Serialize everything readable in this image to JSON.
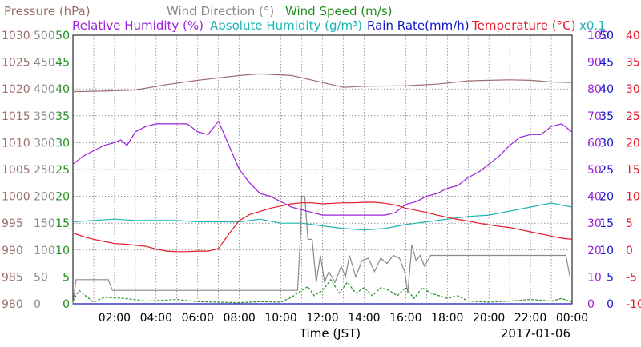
{
  "chart_data": {
    "type": "line",
    "xlabel": "Time (JST)",
    "date_label": "2017-01-06",
    "x_ticks": [
      "02:00",
      "04:00",
      "06:00",
      "08:00",
      "10:00",
      "12:00",
      "14:00",
      "16:00",
      "18:00",
      "20:00",
      "22:00",
      "00:00"
    ],
    "xlim_hours": [
      0,
      24
    ],
    "grid": true,
    "legend": [
      {
        "label": "Pressure (hPa)",
        "color": "#9c6d6d"
      },
      {
        "label": "Wind Direction (°)",
        "color": "#8a8a8a"
      },
      {
        "label": "Wind Speed (m/s)",
        "color": "#1f8f1f"
      },
      {
        "label": "Relative Humidity (%)",
        "color": "#9a22d8"
      },
      {
        "label": "Absolute Humidity (g/m³)",
        "color": "#1fb3b3"
      },
      {
        "label": "Rain Rate(mm/h)",
        "color": "#1414c8"
      },
      {
        "label": "Temperature (°C)",
        "color": "#e8182a"
      },
      {
        "label": "x0.1",
        "color": "#1fb3b3"
      }
    ],
    "axes": [
      {
        "name": "pressure",
        "color": "#9c6d6d",
        "ylim": [
          980,
          1030
        ],
        "ticks": [
          "1030",
          "1025",
          "1020",
          "1015",
          "1010",
          "1005",
          "1000",
          "995",
          "990",
          "985",
          "980"
        ]
      },
      {
        "name": "wind_direction",
        "color": "#8a8a8a",
        "ylim": [
          0,
          500
        ],
        "ticks": [
          "500",
          "450",
          "400",
          "350",
          "300",
          "250",
          "200",
          "150",
          "100",
          "50",
          "0"
        ]
      },
      {
        "name": "wind_speed",
        "color": "#1f8f1f",
        "ylim": [
          0,
          50
        ],
        "ticks": [
          "50",
          "45",
          "40",
          "35",
          "30",
          "25",
          "20",
          "15",
          "10",
          "5",
          "0"
        ]
      },
      {
        "name": "relative_humidity",
        "color": "#9a22d8",
        "ylim": [
          0,
          100
        ],
        "ticks": [
          "100",
          "90",
          "80",
          "70",
          "60",
          "50",
          "40",
          "30",
          "20",
          "10",
          "0"
        ]
      },
      {
        "name": "rain_rate",
        "color": "#1414c8",
        "ylim": [
          0,
          50
        ],
        "ticks": [
          "50",
          "45",
          "40",
          "35",
          "30",
          "25",
          "20",
          "15",
          "10",
          "5",
          "0"
        ]
      },
      {
        "name": "temperature",
        "color": "#e8182a",
        "ylim": [
          -10,
          40
        ],
        "ticks": [
          "40",
          "35",
          "30",
          "25",
          "20",
          "15",
          "10",
          "5",
          "0",
          "-5",
          "-10"
        ]
      }
    ],
    "series": [
      {
        "name": "Pressure (hPa)",
        "axis": "pressure",
        "color": "#9c6d6d",
        "x": [
          0,
          1.5,
          3,
          4.5,
          6,
          8,
          9,
          10.5,
          12,
          13,
          14,
          16,
          17.5,
          19,
          20,
          21,
          22,
          23,
          24
        ],
        "y": [
          1019.5,
          1019.6,
          1019.8,
          1020.8,
          1021.6,
          1022.5,
          1022.8,
          1022.5,
          1021.2,
          1020.3,
          1020.5,
          1020.6,
          1020.9,
          1021.5,
          1021.6,
          1021.7,
          1021.6,
          1021.3,
          1021.2
        ]
      },
      {
        "name": "Wind Direction (°)",
        "axis": "wind_direction",
        "color": "#8a8a8a",
        "x": [
          0,
          0.15,
          0.3,
          1.7,
          1.9,
          2.5,
          9.5,
          10.4,
          10.6,
          10.8,
          10.95,
          11.0,
          11.15,
          11.3,
          11.5,
          11.7,
          11.9,
          12.1,
          12.3,
          12.6,
          12.9,
          13.1,
          13.3,
          13.6,
          13.9,
          14.2,
          14.5,
          14.8,
          15.1,
          15.4,
          15.7,
          15.95,
          16.1,
          16.3,
          16.5,
          16.7,
          16.9,
          17.2,
          17.6,
          18,
          19,
          20,
          21,
          22,
          23,
          23.7,
          23.9
        ],
        "y": [
          0,
          45,
          45,
          45,
          25,
          25,
          25,
          25,
          25,
          25,
          130,
          200,
          200,
          120,
          120,
          40,
          90,
          40,
          60,
          40,
          70,
          50,
          90,
          50,
          80,
          85,
          60,
          85,
          75,
          90,
          85,
          60,
          20,
          110,
          80,
          90,
          70,
          90,
          90,
          90,
          90,
          90,
          90,
          90,
          90,
          90,
          50
        ]
      },
      {
        "name": "Wind Speed (m/s)",
        "axis": "wind_speed",
        "color": "#1f8f1f",
        "x": [
          0,
          0.3,
          0.6,
          1,
          1.5,
          2.5,
          3.5,
          5,
          6,
          7,
          8,
          9,
          10,
          10.5,
          11,
          11.3,
          11.6,
          12,
          12.4,
          12.8,
          13.2,
          13.6,
          14,
          14.4,
          14.8,
          15.2,
          15.6,
          16,
          16.4,
          16.8,
          17.2,
          17.6,
          18,
          18.5,
          19,
          20,
          21,
          22,
          23,
          23.5,
          24
        ],
        "y": [
          0.5,
          2.5,
          1.5,
          0.3,
          1.2,
          1,
          0.5,
          0.8,
          0.4,
          0.3,
          0.2,
          0.4,
          0.3,
          1.2,
          2.5,
          3.2,
          1.5,
          2.5,
          4.5,
          2,
          4,
          2,
          3,
          1.5,
          3,
          2.5,
          1.5,
          3,
          1,
          3,
          2,
          1.5,
          1,
          1.5,
          0.5,
          0.3,
          0.5,
          0.8,
          0.5,
          1,
          0.3
        ]
      },
      {
        "name": "Relative Humidity (%)",
        "axis": "relative_humidity",
        "color": "#9a22d8",
        "x": [
          0,
          0.5,
          1,
          1.5,
          2,
          2.3,
          2.6,
          3,
          3.5,
          4,
          4.5,
          5,
          5.5,
          6,
          6.5,
          7,
          7.5,
          8,
          8.5,
          9,
          9.5,
          10,
          10.5,
          11,
          11.5,
          12,
          12.5,
          13,
          13.5,
          14,
          14.5,
          15,
          15.5,
          16,
          16.5,
          17,
          17.5,
          18,
          18.5,
          19,
          19.5,
          20,
          20.5,
          21,
          21.5,
          22,
          22.5,
          23,
          23.5,
          24
        ],
        "y": [
          52,
          55,
          57,
          59,
          60,
          61,
          59,
          64,
          66,
          67,
          67,
          67,
          67,
          64,
          63,
          68,
          59,
          50,
          45,
          41,
          40,
          38,
          36,
          35,
          34,
          33,
          33,
          33,
          33,
          33,
          33,
          33,
          34,
          37,
          38,
          40,
          41,
          43,
          44,
          47,
          49,
          52,
          55,
          59,
          62,
          63,
          63,
          66,
          67,
          64
        ]
      },
      {
        "name": "Absolute Humidity (g/m³)",
        "axis": "relative_humidity",
        "scale_note": "x0.1",
        "color": "#1fb3b3",
        "x": [
          0,
          1,
          2,
          3,
          4,
          5,
          6,
          7,
          8,
          9,
          10,
          11,
          12,
          13,
          14,
          15,
          16,
          17,
          18,
          19,
          20,
          21,
          22,
          23,
          24
        ],
        "y": [
          30.5,
          31,
          31.5,
          31,
          31,
          31,
          30.5,
          30.5,
          30.5,
          31.5,
          30,
          30,
          29,
          28,
          27.5,
          28,
          29.5,
          30.5,
          31.5,
          32.5,
          33,
          34.5,
          36,
          37.5,
          36
        ]
      },
      {
        "name": "Rain Rate(mm/h)",
        "axis": "rain_rate",
        "color": "#1414c8",
        "x": [
          0,
          24
        ],
        "y": [
          0,
          0
        ]
      },
      {
        "name": "Temperature (°C)",
        "axis": "temperature",
        "color": "#e8182a",
        "x": [
          0,
          0.5,
          1,
          1.5,
          2,
          2.5,
          3,
          3.5,
          4,
          4.5,
          5,
          5.5,
          6,
          6.5,
          7,
          7.5,
          8,
          8.5,
          9,
          9.5,
          10,
          10.5,
          11,
          11.5,
          12,
          12.5,
          13,
          13.5,
          14,
          14.5,
          15,
          15.5,
          16,
          16.5,
          17,
          17.5,
          18,
          18.5,
          19,
          19.5,
          20,
          20.5,
          21,
          21.5,
          22,
          22.5,
          23,
          23.5,
          24
        ],
        "y": [
          3.2,
          2.5,
          2,
          1.6,
          1.2,
          1.1,
          0.9,
          0.7,
          0.2,
          -0.2,
          -0.3,
          -0.3,
          -0.2,
          -0.2,
          0.3,
          3,
          5.5,
          6.6,
          7.2,
          7.8,
          8.2,
          8.6,
          8.8,
          8.8,
          8.6,
          8.7,
          8.8,
          8.8,
          8.9,
          8.9,
          8.7,
          8.4,
          7.8,
          7.4,
          7,
          6.5,
          6.1,
          5.7,
          5.4,
          5,
          4.7,
          4.4,
          4.2,
          3.8,
          3.4,
          3,
          2.6,
          2.2,
          2
        ]
      }
    ]
  }
}
